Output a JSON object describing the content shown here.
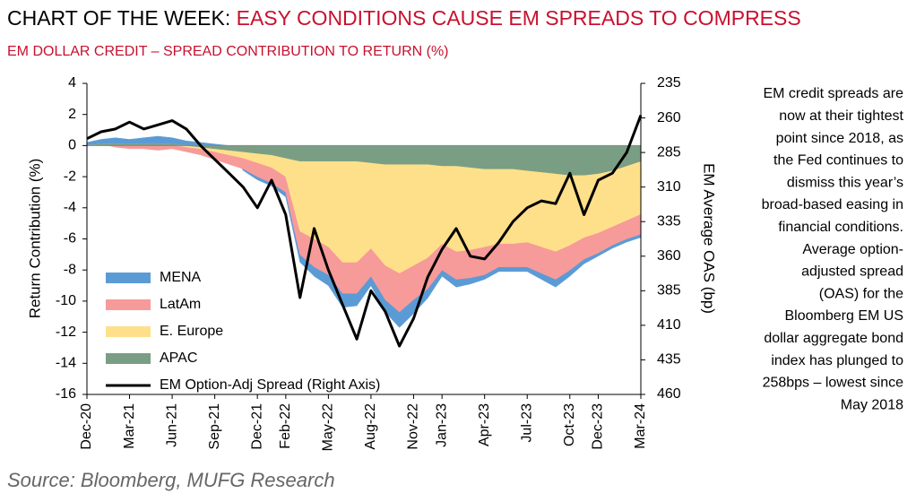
{
  "chart_data": {
    "type": "stacked-area-line",
    "title_prefix": "CHART OF THE WEEK:",
    "title": "EASY CONDITIONS CAUSE EM SPREADS TO COMPRESS",
    "subtitle": "EM DOLLAR CREDIT – SPREAD CONTRIBUTION TO RETURN (%)",
    "y_label": "Return Contribution (%)",
    "y2_label": "EM Average OAS (bp)",
    "note": [
      "EM credit spreads are",
      "now at their tightest",
      "point since 2018, as",
      "the Fed continues to",
      "dismiss this year’s",
      "broad-based easing in",
      "financial conditions.",
      "Average option-",
      "adjusted spread",
      "(OAS) for the",
      "Bloomberg EM US",
      "dollar aggregate bond",
      "index has plunged to",
      "258bps – lowest since",
      "May 2018"
    ],
    "source": "Source: Bloomberg, MUFG Research",
    "categories": [
      "Dec-20",
      null,
      null,
      "Mar-21",
      null,
      null,
      "Jun-21",
      null,
      null,
      "Sep-21",
      null,
      null,
      "Dec-21",
      null,
      "Feb-22",
      null,
      null,
      "May-22",
      null,
      null,
      "Aug-22",
      null,
      null,
      "Nov-22",
      null,
      "Jan-23",
      null,
      null,
      "Apr-23",
      null,
      null,
      "Jul-23",
      null,
      null,
      "Oct-23",
      null,
      "Dec-23",
      null,
      null,
      "Mar-24"
    ],
    "ylim": [
      -16,
      4
    ],
    "yticks": [
      -16,
      -14,
      -12,
      -10,
      -8,
      -6,
      -4,
      -2,
      0,
      2,
      4
    ],
    "y2lim": [
      460,
      235
    ],
    "y2ticks": [
      235,
      260,
      285,
      310,
      335,
      360,
      385,
      410,
      435,
      460
    ],
    "series": [
      {
        "name": "MENA",
        "color": "#5b9bd5",
        "values": [
          0.2,
          0.3,
          0.4,
          0.3,
          0.4,
          0.5,
          0.4,
          0.3,
          0.2,
          0.1,
          0,
          -0.1,
          -0.2,
          -0.2,
          -0.3,
          -0.5,
          -0.6,
          -0.7,
          -0.9,
          -0.8,
          -0.6,
          -0.8,
          -1,
          -0.9,
          -0.6,
          -0.4,
          -0.5,
          -0.4,
          -0.3,
          -0.3,
          -0.3,
          -0.3,
          -0.4,
          -0.5,
          -0.4,
          -0.3,
          -0.2,
          -0.2,
          -0.2,
          -0.2
        ]
      },
      {
        "name": "LatAm",
        "color": "#f79a9a",
        "values": [
          0,
          0,
          -0.1,
          -0.2,
          -0.2,
          -0.3,
          -0.2,
          -0.3,
          -0.4,
          -0.5,
          -0.6,
          -0.7,
          -0.9,
          -1,
          -1,
          -1.5,
          -1.8,
          -1.8,
          -2,
          -2,
          -1.8,
          -2.2,
          -2.5,
          -2.2,
          -2,
          -1.7,
          -1.8,
          -1.8,
          -1.8,
          -1.5,
          -1.5,
          -1.6,
          -1.7,
          -1.8,
          -1.6,
          -1.4,
          -1.3,
          -1.2,
          -1.2,
          -1.3
        ]
      },
      {
        "name": "E. Europe",
        "color": "#ffe08a",
        "values": [
          0,
          0,
          0,
          0,
          0,
          0,
          0,
          -0.1,
          -0.1,
          -0.2,
          -0.3,
          -0.4,
          -0.6,
          -0.8,
          -1.2,
          -4.5,
          -5,
          -5.5,
          -6.5,
          -6.5,
          -5.5,
          -6.5,
          -7,
          -6.5,
          -6,
          -5,
          -5.5,
          -5.3,
          -5,
          -4.8,
          -4.8,
          -4.6,
          -4.8,
          -5,
          -4.5,
          -4,
          -3.8,
          -3.6,
          -3.5,
          -3.4
        ]
      },
      {
        "name": "APAC",
        "color": "#7a9e84",
        "values": [
          0,
          0.1,
          0.1,
          0.1,
          0.1,
          0.1,
          0.1,
          0,
          -0.1,
          -0.2,
          -0.3,
          -0.4,
          -0.5,
          -0.6,
          -0.8,
          -1,
          -1,
          -1,
          -1,
          -1,
          -1.1,
          -1.2,
          -1.2,
          -1.2,
          -1.2,
          -1.3,
          -1.3,
          -1.4,
          -1.5,
          -1.5,
          -1.5,
          -1.6,
          -1.7,
          -1.8,
          -1.9,
          -1.9,
          -1.8,
          -1.6,
          -1.3,
          -1
        ]
      },
      {
        "name": "EM Option-Adj Spread (Right Axis)",
        "color": "#000000",
        "axis": "y2",
        "values": [
          275,
          270,
          268,
          263,
          268,
          265,
          262,
          268,
          280,
          290,
          300,
          310,
          325,
          305,
          330,
          390,
          340,
          370,
          395,
          420,
          385,
          400,
          425,
          405,
          375,
          355,
          340,
          360,
          362,
          350,
          335,
          325,
          320,
          322,
          300,
          330,
          305,
          300,
          285,
          258
        ]
      }
    ]
  }
}
